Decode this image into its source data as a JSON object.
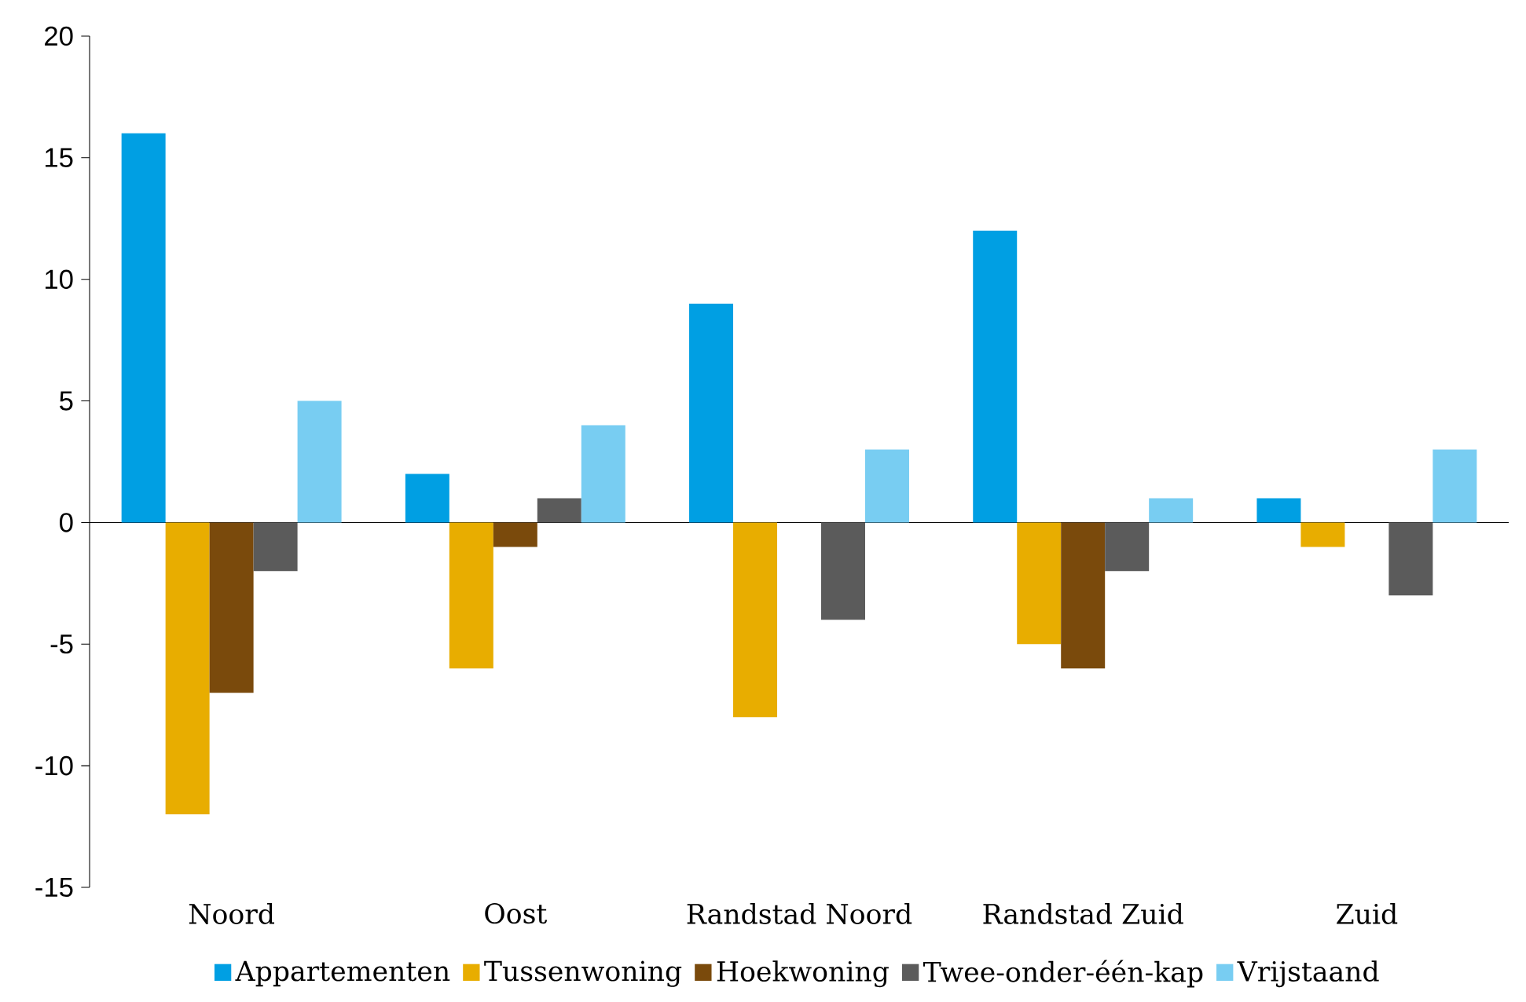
{
  "chart_data": {
    "type": "bar",
    "categories": [
      "Noord",
      "Oost",
      "Randstad Noord",
      "Randstad Zuid",
      "Zuid"
    ],
    "series": [
      {
        "name": "Appartementen",
        "color": "#009fe3",
        "values": [
          16,
          2,
          9,
          12,
          1
        ]
      },
      {
        "name": "Tussenwoning",
        "color": "#e8ad00",
        "values": [
          -12,
          -6,
          -8,
          -5,
          -1
        ]
      },
      {
        "name": "Hoekwoning",
        "color": "#7a4a0c",
        "values": [
          -7,
          -1,
          0,
          -6,
          0
        ]
      },
      {
        "name": "Twee-onder-één-kap",
        "color": "#5b5b5b",
        "values": [
          -2,
          1,
          -4,
          -2,
          -3
        ]
      },
      {
        "name": "Vrijstaand",
        "color": "#78cdf2",
        "values": [
          5,
          4,
          3,
          1,
          3
        ]
      }
    ],
    "ylim": [
      -15,
      20
    ],
    "yticks": [
      -15,
      -10,
      -5,
      0,
      5,
      10,
      15,
      20
    ],
    "legend": "bottom"
  }
}
